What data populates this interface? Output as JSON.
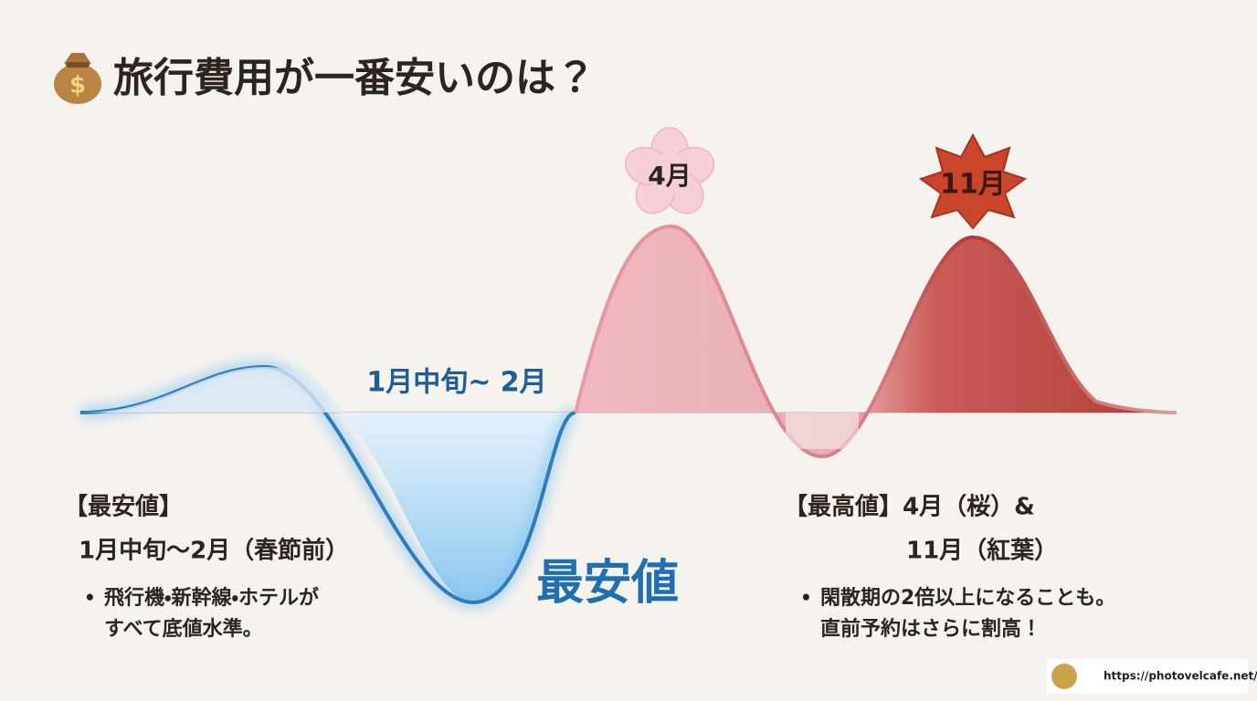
{
  "header": {
    "title": "旅行費用が一番安いのは？"
  },
  "curve_labels": {
    "low_period": "1月中旬~ 2月",
    "peak_april": "4月",
    "peak_november": "11月",
    "cheapest_badge": "最安値"
  },
  "left_box": {
    "heading": "【最安値】",
    "period": "1月中旬〜2月（春節前）",
    "bullet_lines": [
      "飛行機・新幹線・ホテルが",
      "すべて底値水準。"
    ]
  },
  "right_box": {
    "heading": "【最高値】4月（桜）&",
    "heading_cont": "11月（紅葉）",
    "bullet_lines": [
      "閑散期の2倍以上になることも。",
      "直前予約はさらに割高！"
    ]
  },
  "footer": {
    "url": "https://photovelcafe.net/"
  }
}
